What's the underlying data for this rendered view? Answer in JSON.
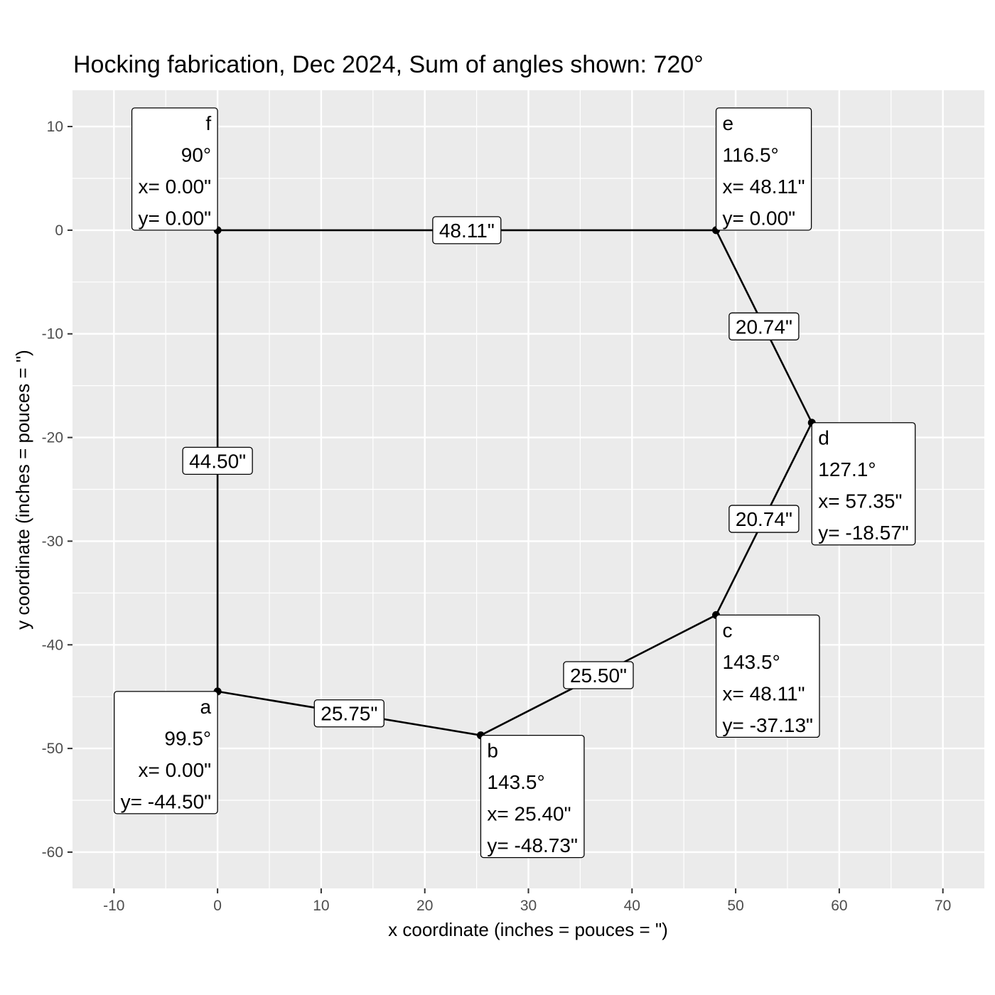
{
  "chart_data": {
    "type": "scatter",
    "title": "Hocking fabrication, Dec 2024, Sum of angles shown: 720°",
    "xlabel": "x coordinate (inches = pouces = \")",
    "ylabel": "y coordinate (inches = pouces = \")",
    "xlim": [
      -14,
      74
    ],
    "ylim": [
      -63.5,
      13.5
    ],
    "grid": true,
    "x_ticks": [
      -10,
      0,
      10,
      20,
      30,
      40,
      50,
      60,
      70
    ],
    "y_ticks": [
      10,
      0,
      -10,
      -20,
      -30,
      -40,
      -50,
      -60
    ],
    "x_tick_labels": [
      "-10",
      "0",
      "10",
      "20",
      "30",
      "40",
      "50",
      "60",
      "70"
    ],
    "y_tick_labels": [
      "10",
      "0",
      "-10",
      "-20",
      "-30",
      "-40",
      "-50",
      "-60"
    ],
    "colors": {
      "panel": "#ebebeb",
      "grid": "#ffffff",
      "line": "#000000",
      "tick": "#4d4d4d"
    },
    "points": [
      {
        "id": "a",
        "x": 0.0,
        "y": -44.5,
        "angle": "99.5°",
        "x_text": "x= 0.00\"",
        "y_text": "y= -44.50\"",
        "side": "left",
        "vert": "below"
      },
      {
        "id": "b",
        "x": 25.4,
        "y": -48.73,
        "angle": "143.5°",
        "x_text": "x= 25.40\"",
        "y_text": "y= -48.73\"",
        "side": "right",
        "vert": "below"
      },
      {
        "id": "c",
        "x": 48.11,
        "y": -37.13,
        "angle": "143.5°",
        "x_text": "x= 48.11\"",
        "y_text": "y= -37.13\"",
        "side": "right",
        "vert": "below"
      },
      {
        "id": "d",
        "x": 57.35,
        "y": -18.57,
        "angle": "127.1°",
        "x_text": "x= 57.35\"",
        "y_text": "y= -18.57\"",
        "side": "right",
        "vert": "below"
      },
      {
        "id": "e",
        "x": 48.11,
        "y": 0.0,
        "angle": "116.5°",
        "x_text": "x= 48.11\"",
        "y_text": "y= 0.00\"",
        "side": "right",
        "vert": "above"
      },
      {
        "id": "f",
        "x": 0.0,
        "y": 0.0,
        "angle": "90°",
        "x_text": "x= 0.00\"",
        "y_text": "y= 0.00\"",
        "side": "left",
        "vert": "above"
      }
    ],
    "edges": [
      {
        "from": "a",
        "to": "b",
        "length": "25.75\""
      },
      {
        "from": "b",
        "to": "c",
        "length": "25.50\""
      },
      {
        "from": "c",
        "to": "d",
        "length": "20.74\""
      },
      {
        "from": "d",
        "to": "e",
        "length": "20.74\""
      },
      {
        "from": "e",
        "to": "f",
        "length": "48.11\""
      },
      {
        "from": "f",
        "to": "a",
        "length": "44.50\""
      }
    ]
  }
}
